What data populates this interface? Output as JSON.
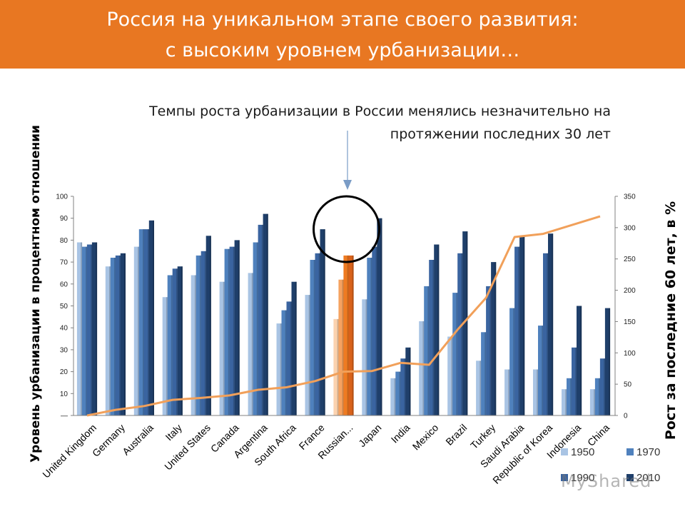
{
  "header": {
    "title_line1": "Россия на уникальном этапе своего развития:",
    "title_line2": "с высоким уровнем урбанизации…"
  },
  "subtitle": "Темпы роста урбанизации в России менялись незначительно на протяжении последних 30 лет",
  "watermark": "MyShared",
  "colors": {
    "header": "#e87722",
    "s1950": "#a9c4e4",
    "s1970": "#4f81bd",
    "s1990": "#3a64a0",
    "s2010": "#1f3f6a",
    "highlight": [
      "#fbd3b0",
      "#f5a260",
      "#ee7b22",
      "#d9621a"
    ],
    "growth_line": "#f1a05a"
  },
  "chart_data": {
    "type": "bar",
    "categories": [
      "United Kingdom",
      "Germany",
      "Australia",
      "Italy",
      "United States",
      "Canada",
      "Argentina",
      "South Africa",
      "France",
      "Russian...",
      "Japan",
      "India",
      "Mexico",
      "Brazil",
      "Turkey",
      "Saudi Arabia",
      "Republic of Korea",
      "Indonesia",
      "China"
    ],
    "series": [
      {
        "name": "1950",
        "values": [
          79,
          68,
          77,
          54,
          64,
          61,
          65,
          42,
          55,
          44,
          53,
          17,
          43,
          36,
          25,
          21,
          21,
          12,
          12
        ]
      },
      {
        "name": "1970",
        "values": [
          77,
          72,
          85,
          64,
          73,
          76,
          79,
          48,
          71,
          62,
          72,
          20,
          59,
          56,
          38,
          49,
          41,
          17,
          17
        ]
      },
      {
        "name": "1990",
        "values": [
          78,
          73,
          85,
          67,
          75,
          77,
          87,
          52,
          74,
          73,
          77,
          26,
          71,
          74,
          59,
          77,
          74,
          31,
          26
        ]
      },
      {
        "name": "2010",
        "values": [
          79,
          74,
          89,
          68,
          82,
          80,
          92,
          61,
          85,
          73,
          90,
          31,
          78,
          84,
          70,
          82,
          83,
          50,
          49
        ]
      }
    ],
    "growth_series": {
      "values": [
        0,
        9,
        15,
        25,
        28,
        32,
        41,
        45,
        55,
        70,
        71,
        84,
        81,
        137,
        188,
        285,
        290,
        304,
        318
      ]
    },
    "highlight_category": "Russian...",
    "y_left": {
      "label": "Уровень урбанизации в процентном отношении",
      "ylim": [
        0,
        100
      ],
      "ticks": [
        "—",
        "10",
        "20",
        "30",
        "40",
        "50",
        "60",
        "70",
        "80",
        "90",
        "100"
      ]
    },
    "y_right": {
      "label": "Рост за последние 60 лет, в %",
      "ylim": [
        0,
        350
      ],
      "ticks": [
        "0",
        "50",
        "100",
        "150",
        "200",
        "250",
        "300",
        "350"
      ]
    },
    "legend": {
      "placement": "bottom-right",
      "entries": [
        "1950",
        "1970",
        "1990",
        "2010"
      ]
    },
    "grid": false
  }
}
